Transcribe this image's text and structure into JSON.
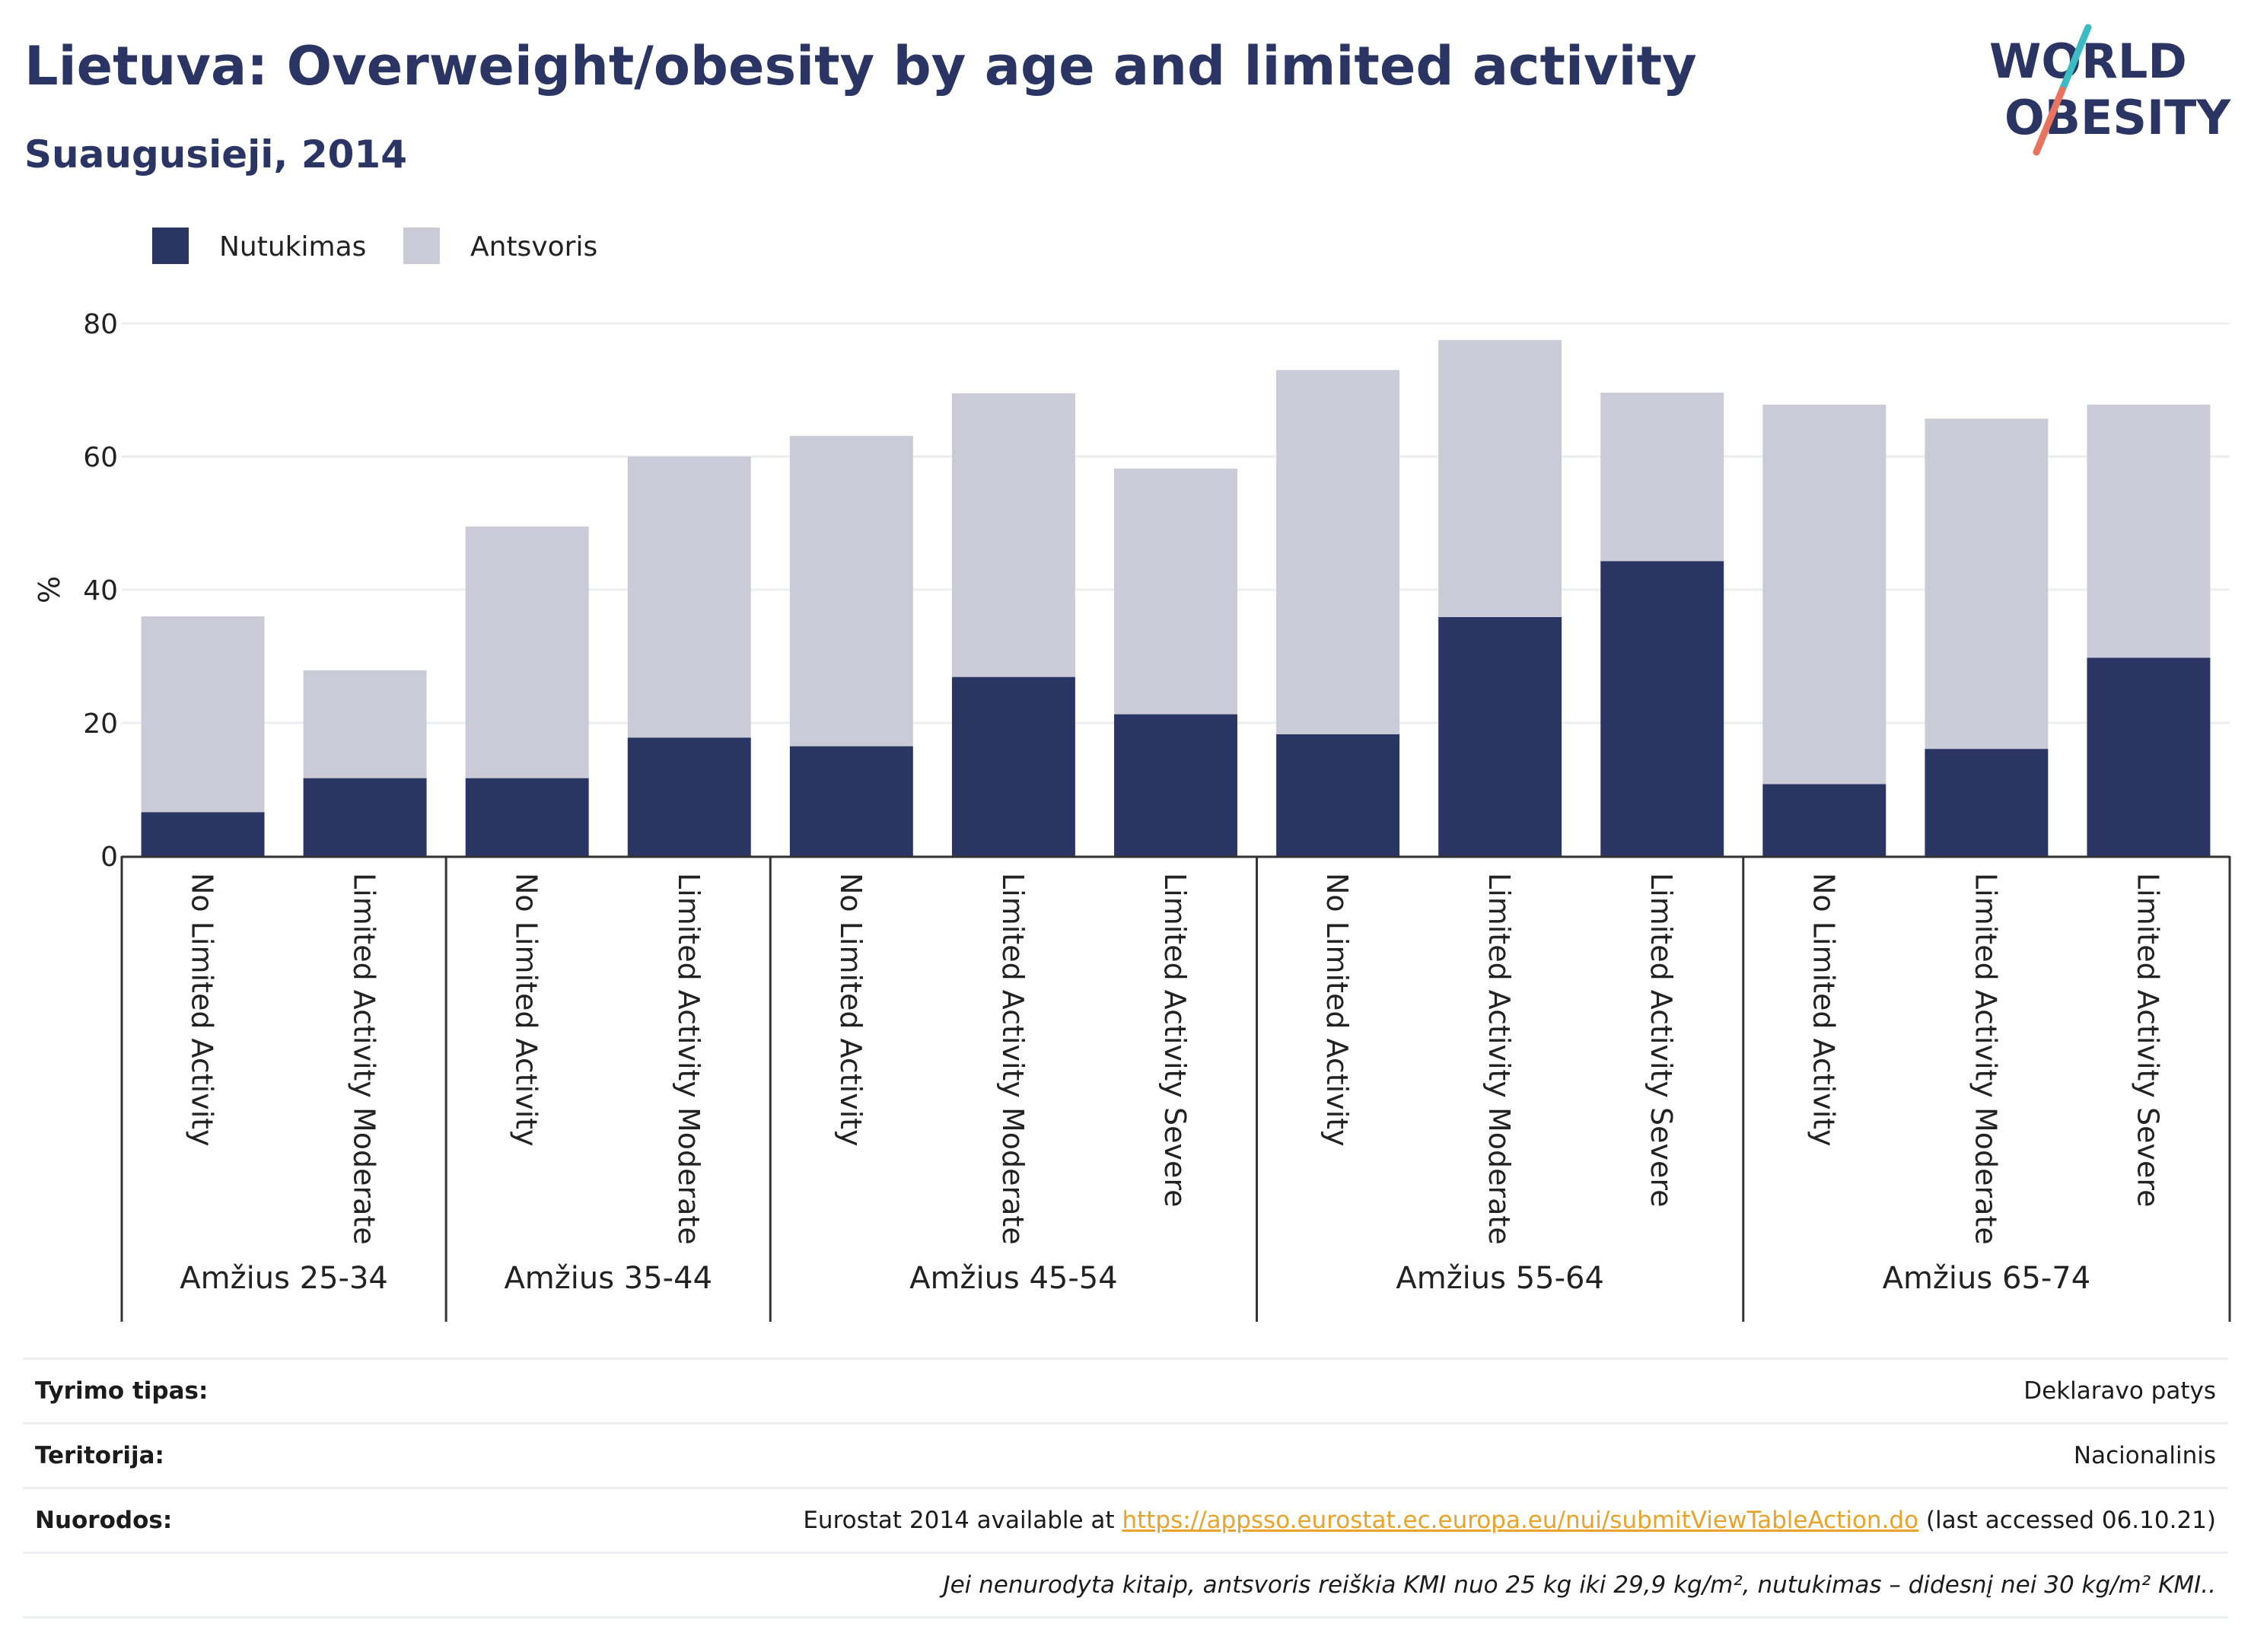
{
  "header": {
    "title": "Lietuva: Overweight/obesity by age and limited activity",
    "subtitle": "Suaugusieji, 2014"
  },
  "logo": {
    "line1": "WORLD",
    "line2": "OBESITY",
    "colors": {
      "text": "#2b3564",
      "slash_teal": "#3bbcc4",
      "slash_coral": "#e8735f"
    }
  },
  "colors": {
    "obesity": "#2b3564",
    "overweight": "#cacbd7",
    "axis": "#333333",
    "grid": "#eceef1"
  },
  "chart_data": {
    "type": "bar",
    "stacked": true,
    "ylabel": "%",
    "ylim": [
      0,
      80
    ],
    "yticks": [
      0,
      20,
      40,
      60,
      80
    ],
    "grid": true,
    "legend_placement": "top-left",
    "groups": [
      {
        "label": "Amžius 25-34",
        "categories": [
          "No Limited Activity",
          "Limited Activity Moderate"
        ]
      },
      {
        "label": "Amžius 35-44",
        "categories": [
          "No Limited Activity",
          "Limited Activity Moderate"
        ]
      },
      {
        "label": "Amžius 45-54",
        "categories": [
          "No Limited Activity",
          "Limited Activity Moderate",
          "Limited Activity Severe"
        ]
      },
      {
        "label": "Amžius 55-64",
        "categories": [
          "No Limited Activity",
          "Limited Activity Moderate",
          "Limited Activity Severe"
        ]
      },
      {
        "label": "Amžius 65-74",
        "categories": [
          "No Limited Activity",
          "Limited Activity Moderate",
          "Limited Activity Severe"
        ]
      }
    ],
    "series": [
      {
        "name": "Nutukimas",
        "color": "#2b3564",
        "values": [
          6.6,
          11.7,
          11.7,
          17.8,
          16.5,
          26.9,
          21.3,
          18.3,
          35.9,
          44.3,
          10.8,
          16.1,
          29.8
        ]
      },
      {
        "name": "Antsvoris",
        "color": "#cacbd7",
        "values": [
          29.4,
          16.2,
          37.8,
          42.2,
          46.6,
          42.6,
          36.9,
          54.7,
          41.6,
          25.3,
          57.0,
          49.6,
          38.0
        ]
      }
    ]
  },
  "meta": {
    "rows": [
      {
        "label": "Tyrimo tipas:",
        "value": "Deklaravo patys"
      },
      {
        "label": "Teritorija:",
        "value": "Nacionalinis"
      }
    ],
    "source": {
      "label": "Nuorodos:",
      "prefix": "Eurostat 2014 available at ",
      "link": "https://appsso.eurostat.ec.europa.eu/nui/submitViewTableAction.do",
      "suffix": " (last accessed 06.10.21)"
    },
    "note": "Jei nenurodyta kitaip, antsvoris reiškia KMI nuo 25 kg iki 29,9 kg/m², nutukimas – didesnį nei 30 kg/m² KMI.."
  }
}
